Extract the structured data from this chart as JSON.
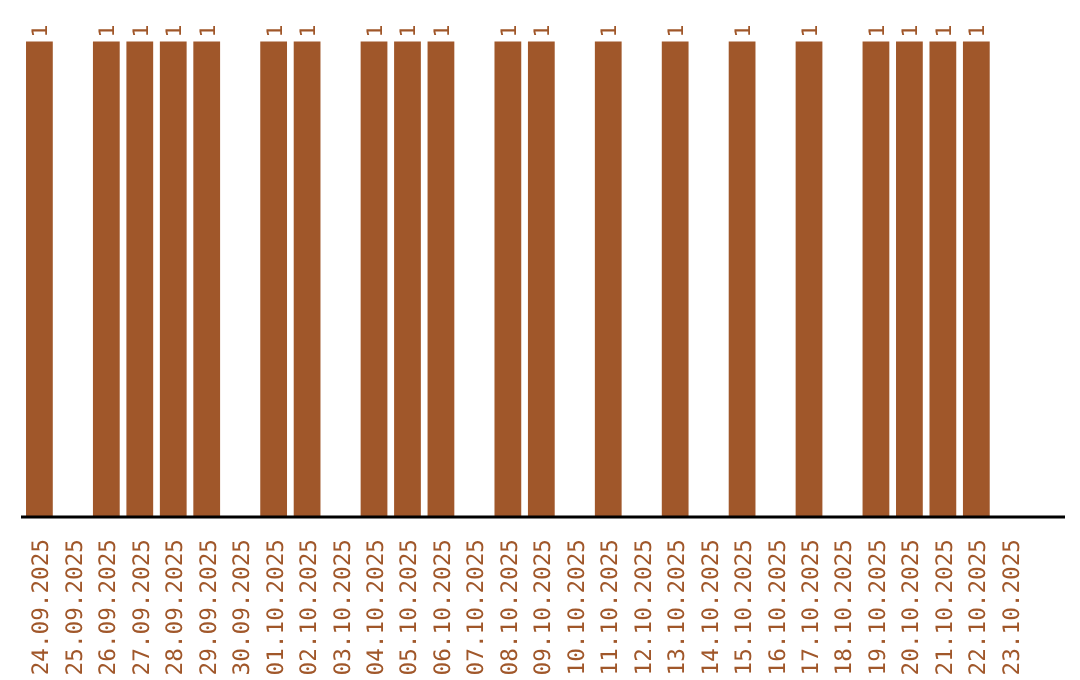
{
  "chart_data": {
    "type": "bar",
    "tick_labels": "x",
    "color": "#a0572a",
    "categories": [
      "24.09.2025",
      "25.09.2025",
      "26.09.2025",
      "27.09.2025",
      "28.09.2025",
      "29.09.2025",
      "30.09.2025",
      "01.10.2025",
      "02.10.2025",
      "03.10.2025",
      "04.10.2025",
      "05.10.2025",
      "06.10.2025",
      "07.10.2025",
      "08.10.2025",
      "09.10.2025",
      "10.10.2025",
      "11.10.2025",
      "12.10.2025",
      "13.10.2025",
      "14.10.2025",
      "15.10.2025",
      "16.10.2025",
      "17.10.2025",
      "18.10.2025",
      "19.10.2025",
      "20.10.2025",
      "21.10.2025",
      "22.10.2025",
      "23.10.2025"
    ],
    "values": [
      1,
      0,
      1,
      1,
      1,
      1,
      0,
      1,
      1,
      0,
      1,
      1,
      1,
      0,
      1,
      1,
      0,
      1,
      0,
      1,
      0,
      1,
      0,
      1,
      0,
      1,
      1,
      1,
      1,
      0
    ],
    "value_labels": [
      "1",
      null,
      "1",
      "1",
      "1",
      "1",
      null,
      "1",
      "1",
      null,
      "1",
      "1",
      "1",
      null,
      "1",
      "1",
      null,
      "1",
      null,
      "1",
      null,
      "1",
      null,
      "1",
      null,
      "1",
      "1",
      "1",
      "1",
      null
    ],
    "grid": false
  }
}
